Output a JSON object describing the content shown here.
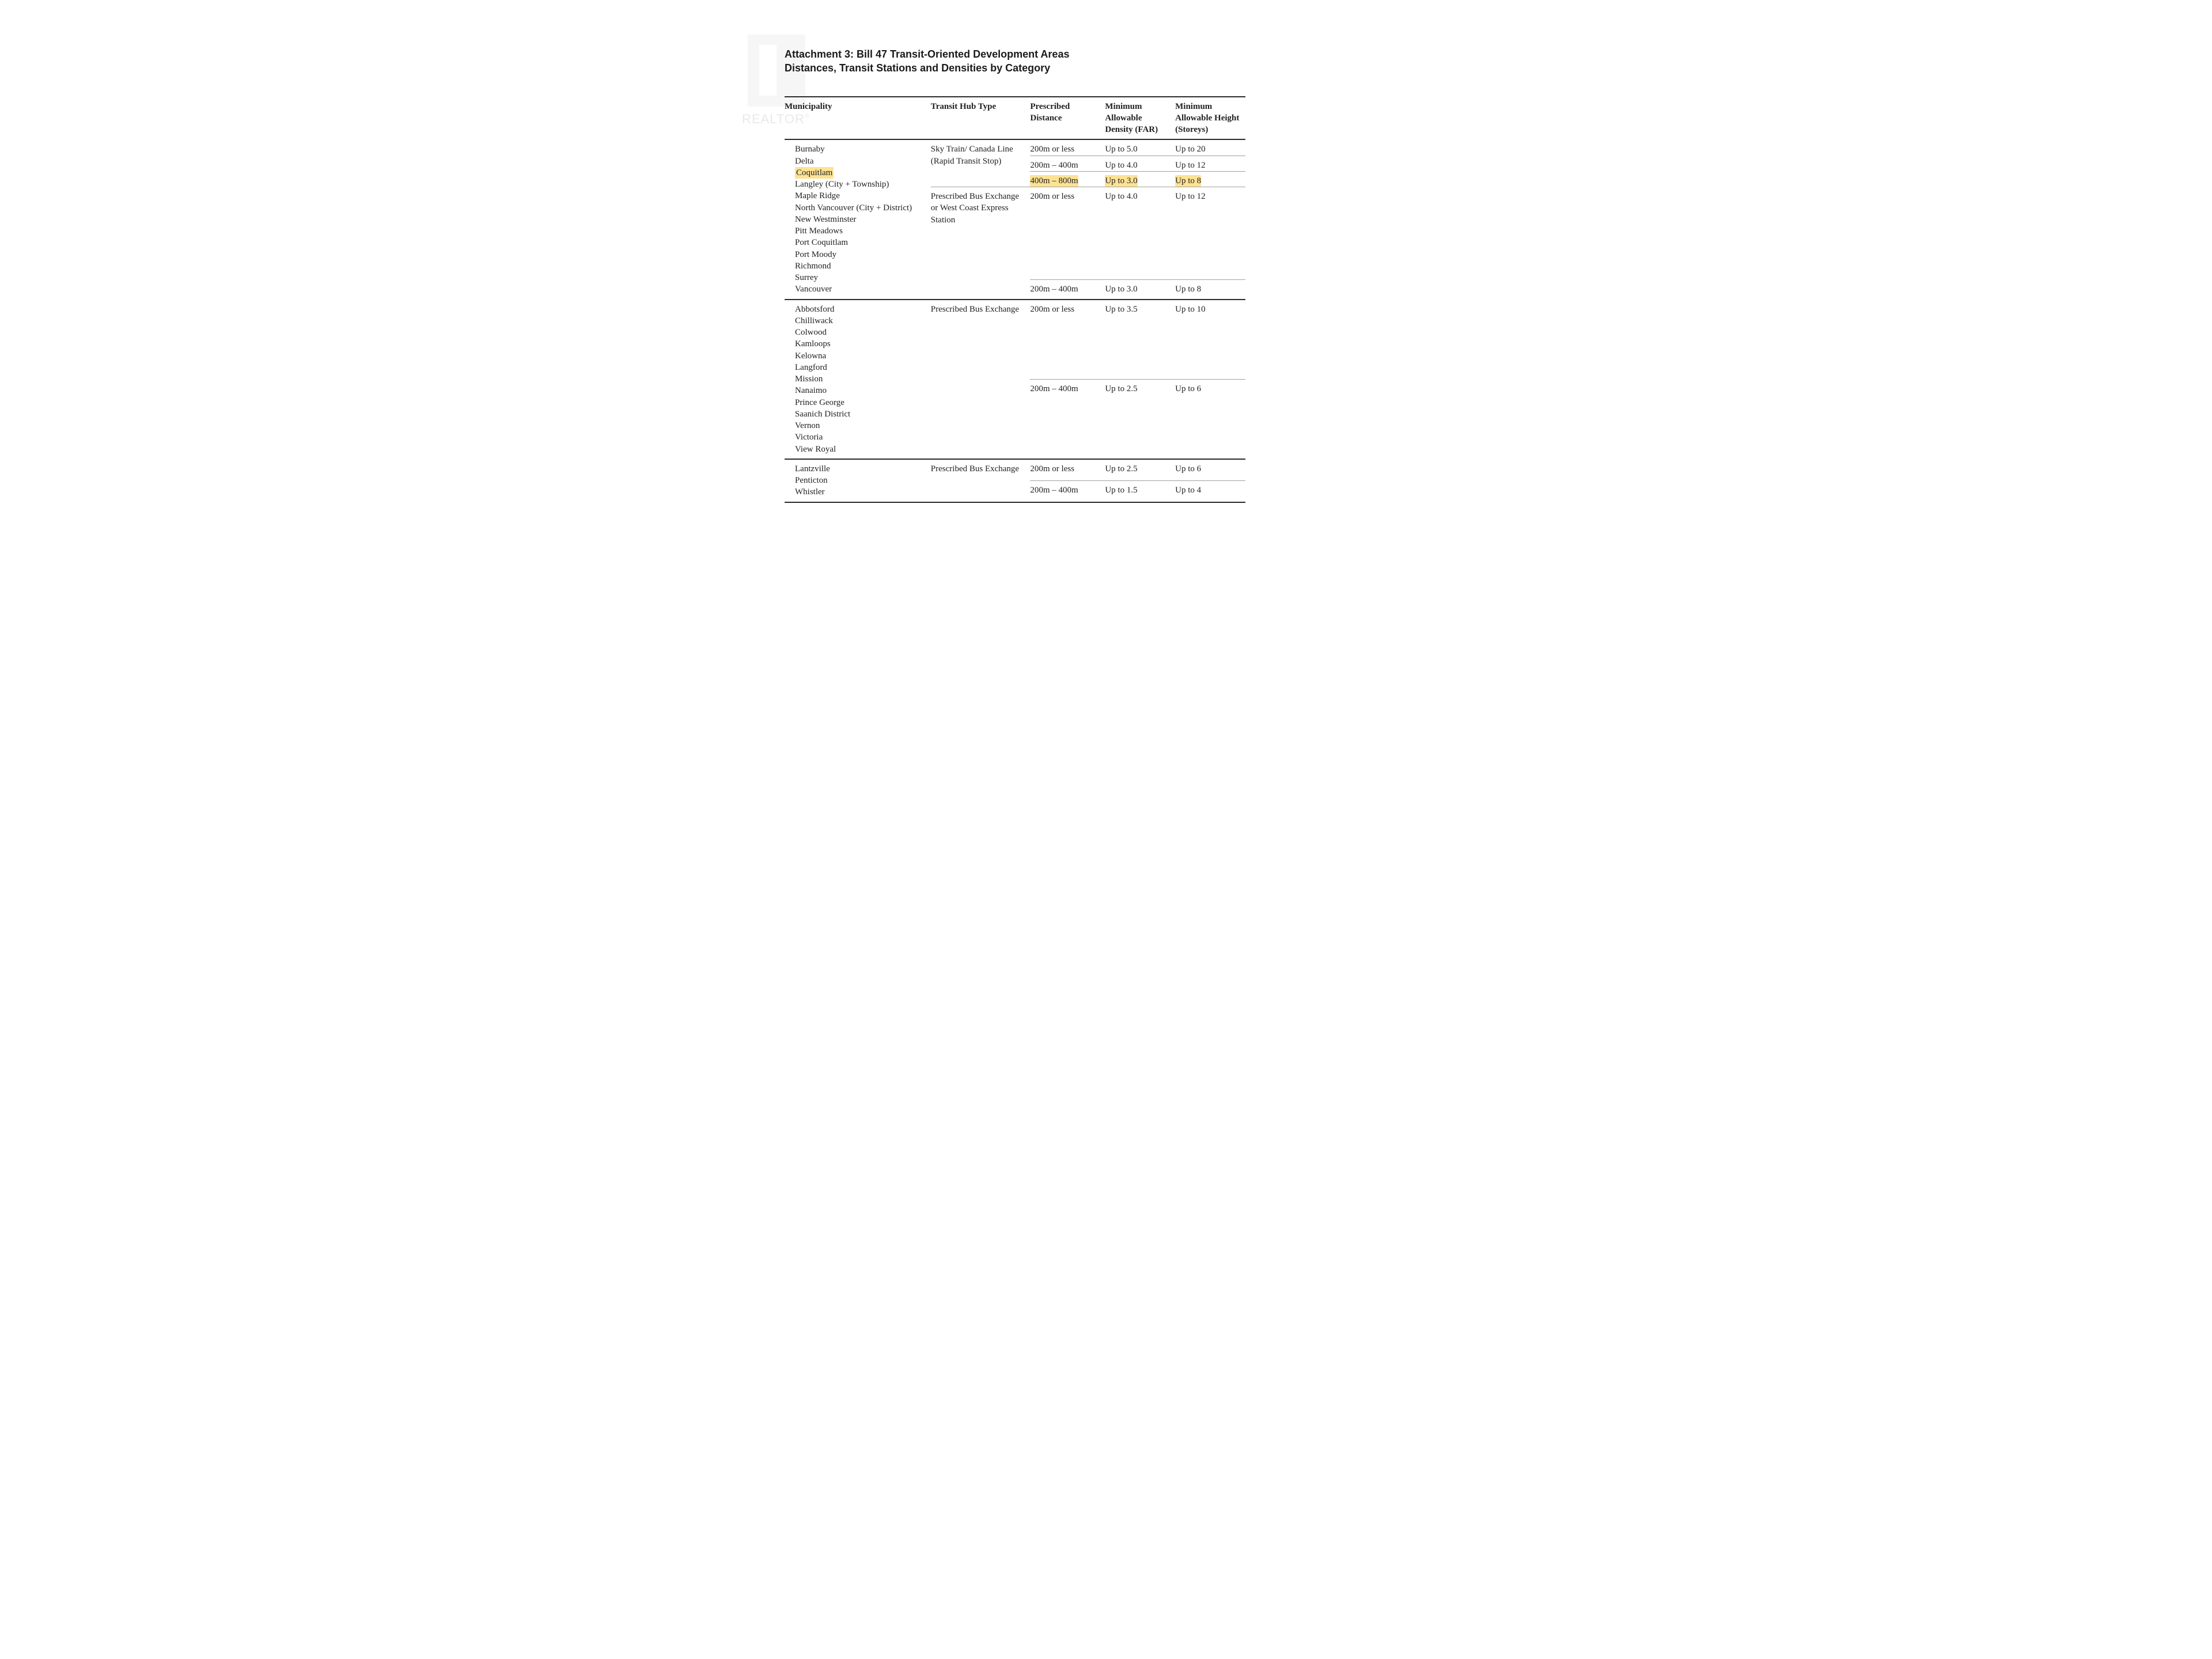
{
  "title": {
    "line1": "Attachment 3: Bill 47 Transit-Oriented Development Areas",
    "line2": "Distances, Transit Stations and Densities by Category",
    "font_family": "Arial",
    "font_size_pt": 14,
    "font_weight": "bold",
    "color": "#1a1a1a"
  },
  "watermark": {
    "text": "REALTOR",
    "suffix": "®",
    "color": "#cfcfcf",
    "icon_fill": "#c8c8c8"
  },
  "highlight_color": "#fde293",
  "table": {
    "border_color_thick": "#2a2a2a",
    "border_color_thin": "#a0a0a0",
    "font_family": "Georgia",
    "font_size_pt": 11,
    "header": {
      "c0": "Municipality",
      "c1": "Transit Hub Type",
      "c2": "Prescribed Distance",
      "c3": "Minimum Allowable Density (FAR)",
      "c4": "Minimum Allowable Height (Storeys)"
    },
    "sections": [
      {
        "municipalities": [
          "Burnaby",
          "Delta",
          "Coquitlam",
          "Langley (City + Township)",
          "Maple Ridge",
          "North Vancouver (City + District)",
          "New Westminster",
          "Pitt Meadows",
          "Port Coquitlam",
          "Port Moody",
          "Richmond",
          "Surrey",
          "Vancouver"
        ],
        "muni_highlights": [
          2
        ],
        "hub_groups": [
          {
            "hub": "Sky Train/ Canada Line (Rapid Transit Stop)",
            "rows": [
              {
                "distance": "200m or less",
                "far": "Up to 5.0",
                "height": "Up to 20",
                "highlight": false
              },
              {
                "distance": "200m – 400m",
                "far": "Up to 4.0",
                "height": "Up to 12",
                "highlight": false
              },
              {
                "distance": "400m – 800m",
                "far": "Up to 3.0",
                "height": "Up to 8",
                "highlight": true
              }
            ]
          },
          {
            "hub": "Prescribed Bus Exchange or West Coast Express Station",
            "rows": [
              {
                "distance": "200m or less",
                "far": "Up to 4.0",
                "height": "Up to 12",
                "highlight": false
              },
              {
                "distance": "200m – 400m",
                "far": "Up to 3.0",
                "height": "Up to 8",
                "highlight": false
              }
            ]
          }
        ]
      },
      {
        "municipalities": [
          "Abbotsford",
          "Chilliwack",
          "Colwood",
          "Kamloops",
          "Kelowna",
          "Langford",
          "Mission",
          "Nanaimo",
          "Prince George",
          "Saanich District",
          "Vernon",
          "Victoria",
          "View Royal"
        ],
        "muni_highlights": [],
        "hub_groups": [
          {
            "hub": "Prescribed Bus Exchange",
            "rows": [
              {
                "distance": "200m or less",
                "far": "Up to 3.5",
                "height": "Up to 10",
                "highlight": false
              },
              {
                "distance": "200m – 400m",
                "far": "Up to 2.5",
                "height": "Up to 6",
                "highlight": false
              }
            ]
          }
        ]
      },
      {
        "municipalities": [
          "Lantzville",
          "Penticton",
          "Whistler"
        ],
        "muni_highlights": [],
        "hub_groups": [
          {
            "hub": "Prescribed Bus Exchange",
            "rows": [
              {
                "distance": "200m or less",
                "far": "Up to 2.5",
                "height": "Up to 6",
                "highlight": false
              },
              {
                "distance": "200m – 400m",
                "far": "Up to 1.5",
                "height": "Up to 4",
                "highlight": false
              }
            ]
          }
        ]
      }
    ]
  }
}
